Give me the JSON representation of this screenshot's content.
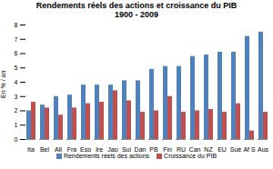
{
  "chart_data": {
    "type": "bar",
    "title": "Rendements réels des actions et croissance du PIB\n1900 - 2009",
    "ylabel": "En % / an",
    "categories": [
      "Ita",
      "Bel",
      "All",
      "Fra",
      "Esp",
      "Ire",
      "Jap",
      "Sui",
      "Dan",
      "PB",
      "Fin",
      "RU",
      "Can",
      "NZ",
      "EU",
      "Suè",
      "Af S",
      "Aus"
    ],
    "series": [
      {
        "name": "Rendements réels des actions",
        "color": "#4f81bd",
        "values": [
          2.0,
          2.4,
          3.0,
          3.1,
          3.8,
          3.8,
          3.8,
          4.1,
          4.1,
          4.9,
          5.1,
          5.1,
          5.8,
          5.9,
          6.1,
          6.1,
          7.2,
          7.5
        ]
      },
      {
        "name": "Croissance du PIB",
        "color": "#c0504d",
        "values": [
          2.6,
          2.2,
          1.7,
          2.2,
          2.5,
          2.6,
          3.4,
          2.7,
          1.9,
          2.0,
          3.0,
          1.9,
          2.0,
          2.1,
          1.9,
          2.5,
          0.6,
          1.9
        ]
      }
    ],
    "ylim": [
      0,
      8
    ],
    "yticks": [
      0,
      1,
      2,
      3,
      4,
      5,
      6,
      7,
      8
    ],
    "grid": false
  }
}
